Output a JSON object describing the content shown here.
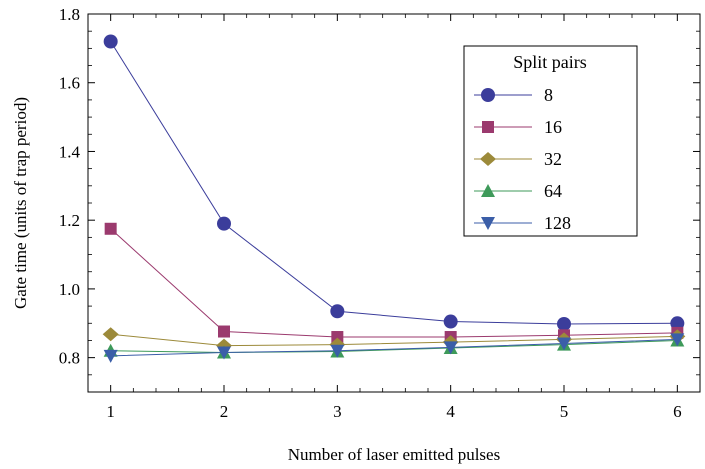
{
  "chart_data": {
    "type": "line",
    "xlabel": "Number of laser emitted pulses",
    "ylabel": "Gate time (units of trap period)",
    "x": [
      1,
      2,
      3,
      4,
      5,
      6
    ],
    "xlim": [
      0.8,
      6.2
    ],
    "ylim": [
      0.7,
      1.8
    ],
    "xticks": [
      1,
      2,
      3,
      4,
      5,
      6
    ],
    "yticks": [
      0.8,
      1.0,
      1.2,
      1.4,
      1.6,
      1.8
    ],
    "ytick_labels": [
      "0.8",
      "1.0",
      "1.2",
      "1.4",
      "1.6",
      "1.8"
    ],
    "legend": {
      "title": "Split pairs",
      "position": "top-right"
    },
    "series": [
      {
        "name": "8",
        "marker": "circle",
        "color": "#3b3d9b",
        "values": [
          1.72,
          1.19,
          0.935,
          0.905,
          0.898,
          0.9
        ]
      },
      {
        "name": "16",
        "marker": "square",
        "color": "#9b3a6e",
        "values": [
          1.175,
          0.876,
          0.86,
          0.86,
          0.865,
          0.872
        ]
      },
      {
        "name": "32",
        "marker": "diamond",
        "color": "#9c8a3a",
        "values": [
          0.868,
          0.835,
          0.838,
          0.845,
          0.853,
          0.862
        ]
      },
      {
        "name": "64",
        "marker": "triangle-up",
        "color": "#3e9a5a",
        "values": [
          0.82,
          0.815,
          0.818,
          0.828,
          0.838,
          0.85
        ]
      },
      {
        "name": "128",
        "marker": "triangle-down",
        "color": "#3b5ea8",
        "values": [
          0.805,
          0.815,
          0.82,
          0.83,
          0.841,
          0.853
        ]
      }
    ]
  }
}
